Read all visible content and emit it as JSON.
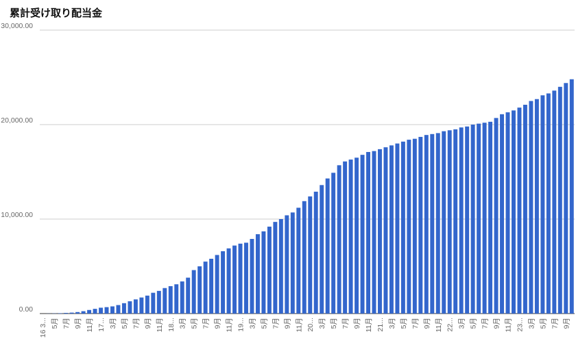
{
  "chart_data": {
    "type": "bar",
    "title": "累計受け取り配当金",
    "color": "#3366cc",
    "grid": true,
    "ylim": [
      0,
      30000
    ],
    "yticks": [
      {
        "value": 0,
        "label": "0.00"
      },
      {
        "value": 10000,
        "label": "10,000.00"
      },
      {
        "value": 20000,
        "label": "20,000.00"
      },
      {
        "value": 30000,
        "label": "30,000.00"
      }
    ],
    "categories": [
      "16 3...",
      null,
      "5月",
      null,
      "7月",
      null,
      "9月",
      null,
      "11月",
      null,
      "17...",
      null,
      "3月",
      null,
      "5月",
      null,
      "7月",
      null,
      "9月",
      null,
      "11月",
      null,
      "18...",
      null,
      "3月",
      null,
      "5月",
      null,
      "7月",
      null,
      "9月",
      null,
      "11月",
      null,
      "19...",
      null,
      "3月",
      null,
      "5月",
      null,
      "7月",
      null,
      "9月",
      null,
      "11月",
      null,
      "20...",
      null,
      "3月",
      null,
      "5月",
      null,
      "7月",
      null,
      "9月",
      null,
      "11月",
      null,
      "21...",
      null,
      "3月",
      null,
      "5月",
      null,
      "7月",
      null,
      "9月",
      null,
      "11月",
      null,
      "22...",
      null,
      "3月",
      null,
      "5月",
      null,
      "7月",
      null,
      "9月",
      null,
      "11月",
      null,
      "23...",
      null,
      "3月",
      null,
      "5月",
      null,
      "7月",
      null,
      "9月",
      null
    ],
    "values": [
      0,
      10,
      20,
      40,
      70,
      100,
      160,
      250,
      380,
      500,
      620,
      680,
      760,
      900,
      1100,
      1300,
      1500,
      1700,
      1900,
      2200,
      2400,
      2700,
      2900,
      3100,
      3400,
      3800,
      4600,
      5000,
      5500,
      5800,
      6200,
      6600,
      6900,
      7200,
      7400,
      7500,
      7900,
      8400,
      8700,
      9200,
      9700,
      10000,
      10400,
      10700,
      11200,
      11900,
      12400,
      12900,
      13600,
      14300,
      14900,
      15700,
      16100,
      16300,
      16500,
      16800,
      17100,
      17200,
      17400,
      17600,
      17800,
      18000,
      18200,
      18400,
      18500,
      18700,
      18900,
      19000,
      19100,
      19300,
      19400,
      19500,
      19700,
      19800,
      20000,
      20100,
      20200,
      20300,
      20700,
      21100,
      21300,
      21500,
      21800,
      22100,
      22500,
      22700,
      23100,
      23300,
      23600,
      24000,
      24400,
      24800
    ]
  }
}
